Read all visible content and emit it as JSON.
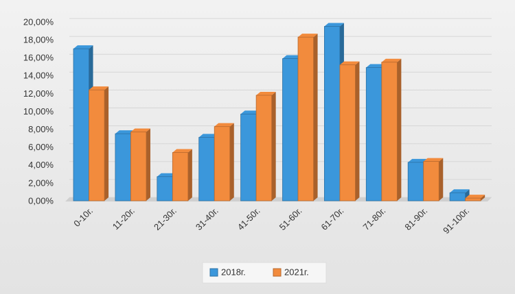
{
  "chart_data": {
    "type": "bar",
    "categories": [
      "0-10г.",
      "11-20г.",
      "21-30г.",
      "31-40г.",
      "41-50г.",
      "51-60г.",
      "61-70г.",
      "71-80г.",
      "81-90г.",
      "91-100г."
    ],
    "series": [
      {
        "name": "2018г.",
        "color": "#3b97db",
        "values": [
          17.0,
          7.5,
          2.7,
          7.1,
          9.7,
          15.9,
          19.5,
          14.9,
          4.3,
          0.9
        ]
      },
      {
        "name": "2021г.",
        "color": "#f28b3d",
        "values": [
          12.4,
          7.7,
          5.4,
          8.3,
          11.8,
          18.3,
          15.2,
          15.5,
          4.4,
          0.3
        ]
      }
    ],
    "ylim": [
      0,
      20
    ],
    "yticks": [
      {
        "value": 0,
        "label": "0,00%"
      },
      {
        "value": 2,
        "label": "2,00%"
      },
      {
        "value": 4,
        "label": "4,00%"
      },
      {
        "value": 6,
        "label": "6,00%"
      },
      {
        "value": 8,
        "label": "8,00%"
      },
      {
        "value": 10,
        "label": "10,00%"
      },
      {
        "value": 12,
        "label": "12,00%"
      },
      {
        "value": 14,
        "label": "14,00%"
      },
      {
        "value": 16,
        "label": "16,00%"
      },
      {
        "value": 18,
        "label": "18,00%"
      },
      {
        "value": 20,
        "label": "20,00%"
      }
    ],
    "grid": true,
    "legend": "bottom"
  }
}
